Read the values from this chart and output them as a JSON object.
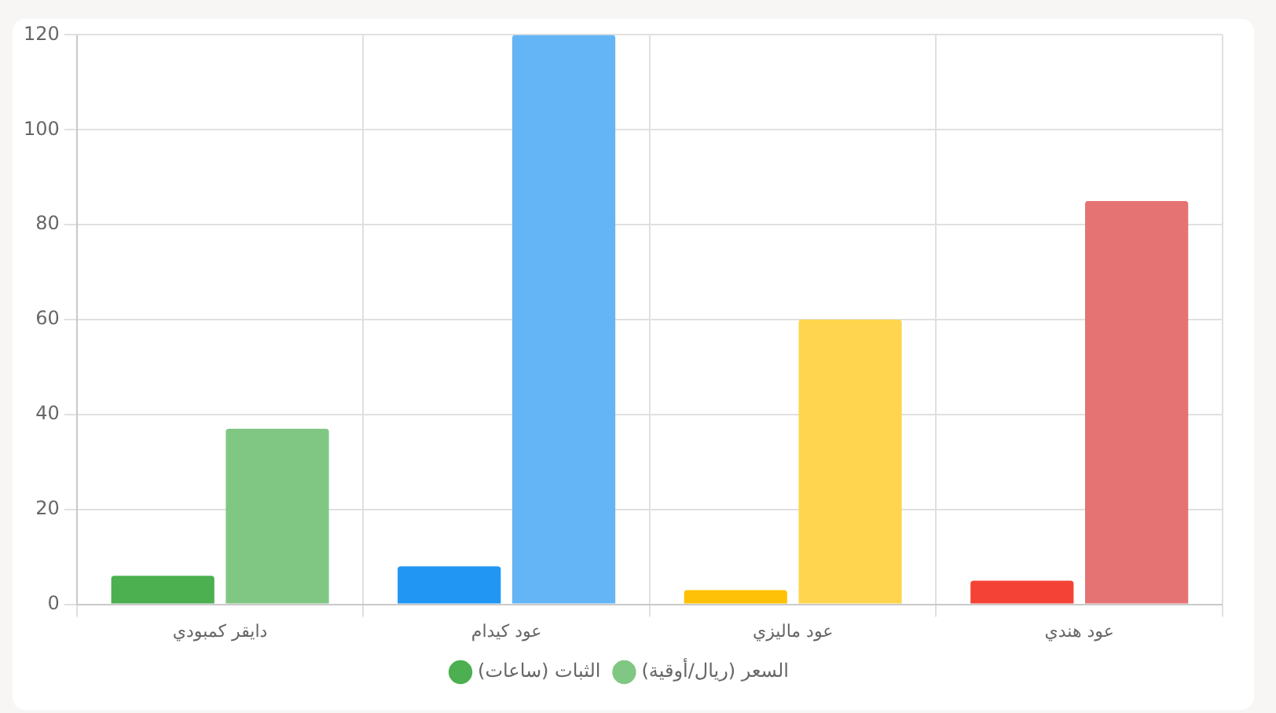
{
  "chart_data": {
    "type": "bar",
    "categories": [
      "دايقر كمبودي",
      "عود كيدام",
      "عود ماليزي",
      "عود هندي"
    ],
    "series": [
      {
        "name": "الثبات (ساعات)",
        "color": "#4caf50",
        "colors": [
          "#4caf50",
          "#2196f3",
          "#ffc107",
          "#f44336"
        ],
        "values": [
          6,
          8,
          3,
          5
        ]
      },
      {
        "name": "السعر (ريال/أوقية)",
        "color": "#81c784",
        "colors": [
          "#81c784",
          "#64b5f6",
          "#ffd54f",
          "#e57373"
        ],
        "values": [
          37,
          120,
          60,
          85
        ]
      }
    ],
    "ylim": [
      0,
      120
    ],
    "yticks": [
      0,
      20,
      40,
      60,
      80,
      100,
      120
    ],
    "grid": true,
    "legend": "bottom"
  }
}
